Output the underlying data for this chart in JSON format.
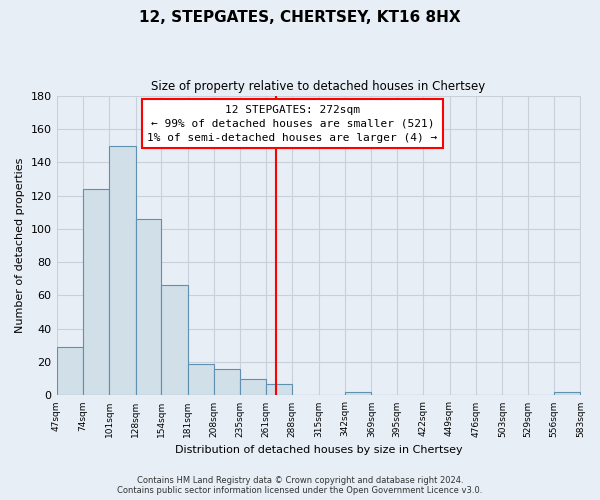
{
  "title": "12, STEPGATES, CHERTSEY, KT16 8HX",
  "subtitle": "Size of property relative to detached houses in Chertsey",
  "xlabel": "Distribution of detached houses by size in Chertsey",
  "ylabel": "Number of detached properties",
  "bin_edges": [
    47,
    74,
    101,
    128,
    154,
    181,
    208,
    235,
    261,
    288,
    315,
    342,
    369,
    395,
    422,
    449,
    476,
    503,
    529,
    556,
    583
  ],
  "bin_labels": [
    "47sqm",
    "74sqm",
    "101sqm",
    "128sqm",
    "154sqm",
    "181sqm",
    "208sqm",
    "235sqm",
    "261sqm",
    "288sqm",
    "315sqm",
    "342sqm",
    "369sqm",
    "395sqm",
    "422sqm",
    "449sqm",
    "476sqm",
    "503sqm",
    "529sqm",
    "556sqm",
    "583sqm"
  ],
  "counts": [
    29,
    124,
    150,
    106,
    66,
    19,
    16,
    10,
    7,
    0,
    0,
    2,
    0,
    0,
    0,
    0,
    0,
    0,
    0,
    2
  ],
  "bar_color": "#d0dfe8",
  "bar_edge_color": "#6090b0",
  "vline_x": 272,
  "vline_color": "red",
  "annotation_title": "12 STEPGATES: 272sqm",
  "annotation_line1": "← 99% of detached houses are smaller (521)",
  "annotation_line2": "1% of semi-detached houses are larger (4) →",
  "annotation_box_facecolor": "white",
  "annotation_box_edgecolor": "red",
  "ylim": [
    0,
    180
  ],
  "yticks": [
    0,
    20,
    40,
    60,
    80,
    100,
    120,
    140,
    160,
    180
  ],
  "bg_color": "#e8eef5",
  "grid_color": "#c8d0dc",
  "footer_line1": "Contains HM Land Registry data © Crown copyright and database right 2024.",
  "footer_line2": "Contains public sector information licensed under the Open Government Licence v3.0."
}
